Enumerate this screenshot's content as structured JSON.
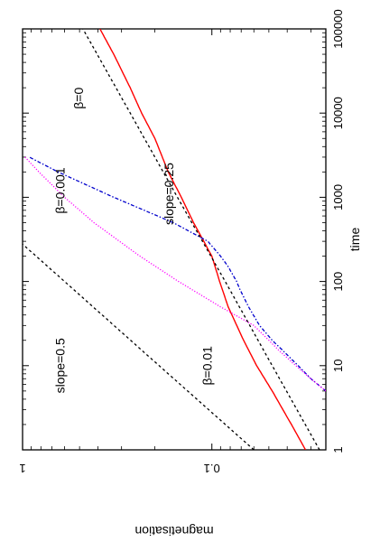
{
  "chart_data": {
    "type": "line",
    "orientation": "rotated-90-clockwise",
    "xlabel": "time",
    "ylabel": "magnetisation",
    "xscale": "log",
    "yscale": "log",
    "xlim": [
      1,
      100000
    ],
    "ylim": [
      0.025,
      1
    ],
    "x_ticks": [
      {
        "value": 1,
        "label": "1"
      },
      {
        "value": 10,
        "label": "10"
      },
      {
        "value": 100,
        "label": "100"
      },
      {
        "value": 1000,
        "label": "1000"
      },
      {
        "value": 10000,
        "label": "10000"
      },
      {
        "value": 100000,
        "label": "100000"
      }
    ],
    "y_ticks": [
      {
        "value": 1,
        "label": "1"
      },
      {
        "value": 0.1,
        "label": "0.1"
      }
    ],
    "grid": false,
    "legend": "none",
    "series": [
      {
        "name": "β=0",
        "color": "#ff0000",
        "style": "solid",
        "x": [
          1,
          2,
          5,
          10,
          20,
          50,
          100,
          200,
          500,
          1000,
          2000,
          5000,
          10000,
          20000,
          50000,
          100000
        ],
        "y": [
          0.032,
          0.038,
          0.048,
          0.058,
          0.068,
          0.082,
          0.091,
          0.1,
          0.125,
          0.145,
          0.17,
          0.2,
          0.235,
          0.27,
          0.33,
          0.39
        ]
      },
      {
        "name": "β=0.001",
        "color": "#0000cc",
        "style": "dash-dot",
        "x": [
          5,
          7,
          10,
          15,
          20,
          30,
          50,
          80,
          100,
          150,
          200,
          300,
          500,
          1000,
          2000,
          3000
        ],
        "y": [
          0.025,
          0.03,
          0.035,
          0.042,
          0.048,
          0.056,
          0.064,
          0.071,
          0.074,
          0.082,
          0.09,
          0.105,
          0.16,
          0.33,
          0.65,
          0.92
        ]
      },
      {
        "name": "β=0.01",
        "color": "#ff00ff",
        "style": "dotted",
        "x": [
          5,
          7,
          10,
          15,
          20,
          30,
          50,
          100,
          200,
          500,
          1000,
          2000,
          3000
        ],
        "y": [
          0.025,
          0.03,
          0.036,
          0.044,
          0.05,
          0.06,
          0.09,
          0.15,
          0.24,
          0.42,
          0.6,
          0.82,
          0.97
        ]
      },
      {
        "name": "slope=0.5",
        "color": "#000000",
        "style": "dashed",
        "x": [
          1,
          10,
          100,
          400
        ],
        "y": [
          0.06,
          0.19,
          0.6,
          1.2
        ]
      },
      {
        "name": "slope=0.25",
        "color": "#000000",
        "style": "dashed",
        "x": [
          1,
          10,
          100,
          1000,
          10000,
          100000
        ],
        "y": [
          0.027,
          0.048,
          0.085,
          0.152,
          0.27,
          0.48
        ]
      }
    ],
    "annotations": [
      {
        "text": "β=0",
        "x": 15000,
        "y": 0.48
      },
      {
        "text": "β=0.001",
        "x": 1200,
        "y": 0.6
      },
      {
        "text": "β=0.01",
        "x": 10,
        "y": 0.1
      },
      {
        "text": "slope=0.5",
        "x": 10,
        "y": 0.6
      },
      {
        "text": "slope=0.25",
        "x": 1100,
        "y": 0.16
      }
    ]
  }
}
